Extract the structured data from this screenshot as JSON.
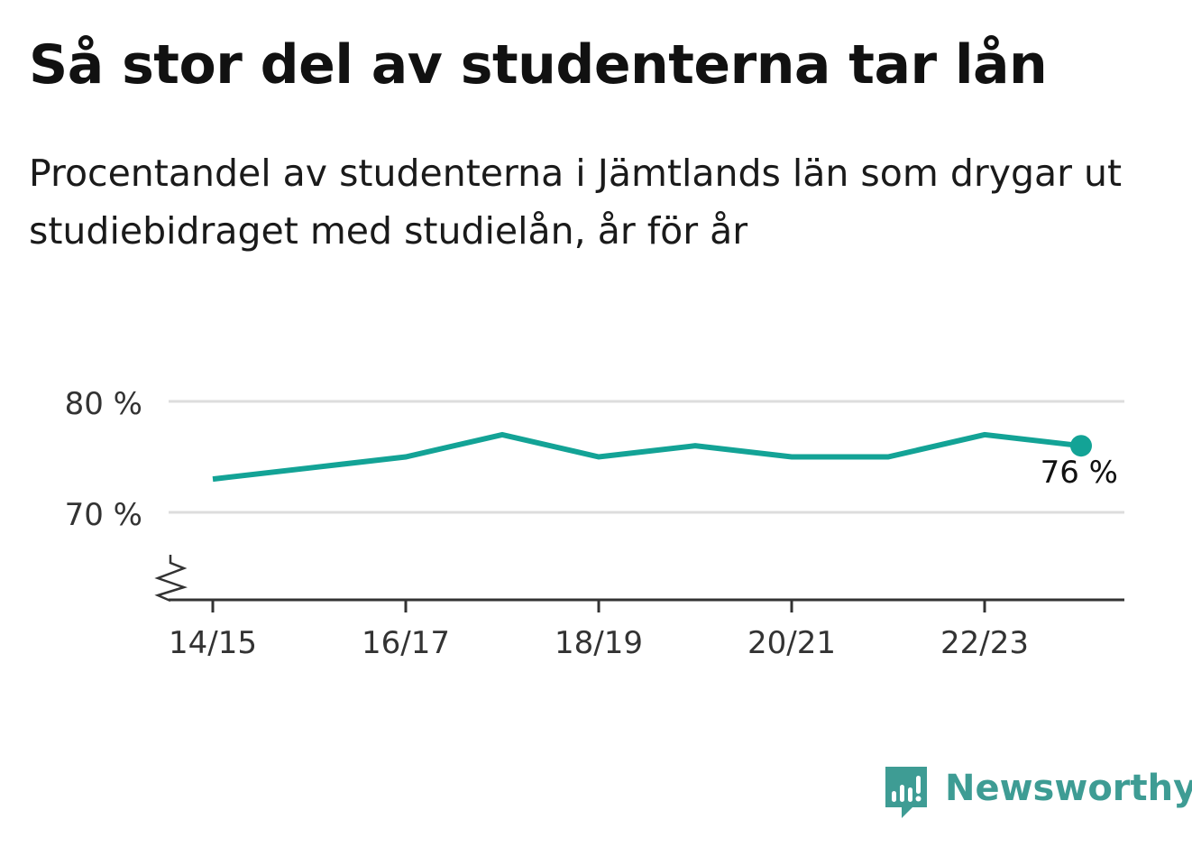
{
  "title": "Så stor del av studenterna tar lån",
  "subtitle": "Procentandel av studenterna i Jämtlands län som drygar ut studiebidraget med studielån, år för år",
  "brand": {
    "name": "Newsworthy",
    "icon": "bar-chart-speech-bubble-icon",
    "color": "#3e9c94"
  },
  "colors": {
    "line": "#13a396",
    "grid": "#dddddd",
    "axis": "#333333",
    "text": "#333333"
  },
  "chart_data": {
    "type": "line",
    "x": [
      "14/15",
      "15/16",
      "16/17",
      "17/18",
      "18/19",
      "19/20",
      "20/21",
      "21/22",
      "22/23",
      "23/24"
    ],
    "series": [
      {
        "values": [
          73,
          74,
          75,
          77,
          75,
          76,
          75,
          75,
          77,
          76
        ]
      }
    ],
    "x_tick_labels": [
      "14/15",
      "16/17",
      "18/19",
      "20/21",
      "22/23"
    ],
    "y_ticks": [
      {
        "value": 70,
        "label": "70 %"
      },
      {
        "value": 80,
        "label": "80 %"
      }
    ],
    "end_label": "76 %",
    "axis_break": true,
    "grid": true
  }
}
